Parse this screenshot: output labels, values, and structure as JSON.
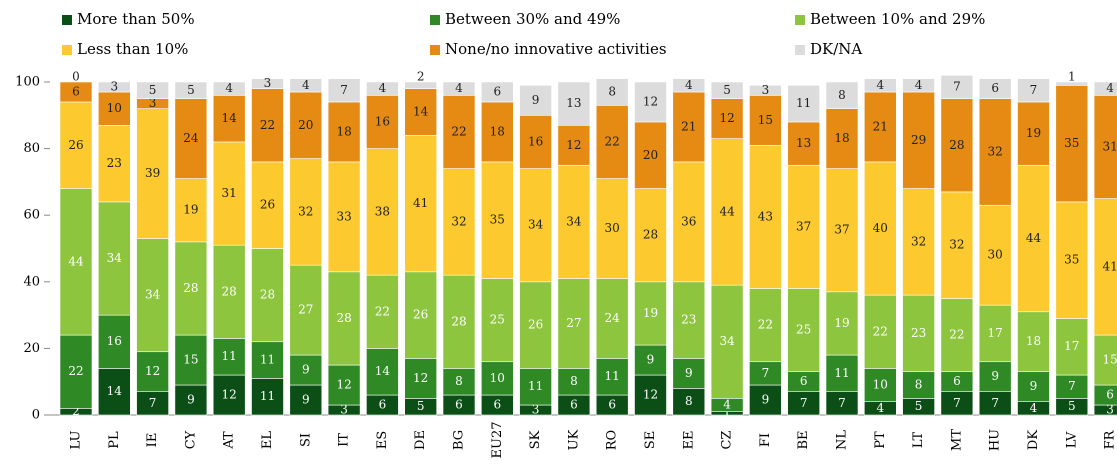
{
  "chart_data": {
    "type": "stacked_bar",
    "categories": [
      "LU",
      "PL",
      "IE",
      "CY",
      "AT",
      "EL",
      "SI",
      "IT",
      "ES",
      "DE",
      "BG",
      "EU27",
      "SK",
      "UK",
      "RO",
      "SE",
      "EE",
      "CZ",
      "FI",
      "BE",
      "NL",
      "PT",
      "LT",
      "MT",
      "HU",
      "DK",
      "LV",
      "FR"
    ],
    "series": [
      {
        "name": "More than 50%",
        "color": "#0b4f16",
        "values": [
          2,
          14,
          7,
          9,
          12,
          11,
          9,
          3,
          6,
          5,
          6,
          6,
          3,
          6,
          6,
          12,
          8,
          1,
          9,
          7,
          7,
          4,
          5,
          7,
          7,
          4,
          5,
          3
        ]
      },
      {
        "name": "Between 30% and 49%",
        "color": "#2f8a26",
        "values": [
          22,
          16,
          12,
          15,
          11,
          11,
          9,
          12,
          14,
          12,
          8,
          10,
          11,
          8,
          11,
          9,
          9,
          4,
          7,
          6,
          11,
          10,
          8,
          6,
          9,
          9,
          7,
          6
        ]
      },
      {
        "name": "Between 10% and 29%",
        "color": "#8dc53e",
        "values": [
          44,
          34,
          34,
          28,
          28,
          28,
          27,
          28,
          22,
          26,
          28,
          25,
          26,
          27,
          24,
          19,
          23,
          34,
          22,
          25,
          19,
          22,
          23,
          22,
          17,
          18,
          17,
          15
        ]
      },
      {
        "name": "Less than 10%",
        "color": "#fcc92e",
        "values": [
          26,
          23,
          39,
          19,
          31,
          26,
          32,
          33,
          38,
          41,
          32,
          35,
          34,
          34,
          30,
          28,
          36,
          44,
          43,
          37,
          37,
          40,
          32,
          32,
          30,
          44,
          35,
          41
        ]
      },
      {
        "name": "None/no innovative activities",
        "color": "#e58a12",
        "values": [
          6,
          10,
          3,
          24,
          14,
          22,
          20,
          18,
          16,
          14,
          22,
          18,
          16,
          12,
          22,
          20,
          21,
          12,
          15,
          13,
          18,
          21,
          29,
          28,
          32,
          19,
          35,
          31
        ]
      },
      {
        "name": "DK/NA",
        "color": "#dcdcdc",
        "values": [
          0,
          3,
          5,
          5,
          4,
          3,
          4,
          7,
          4,
          2,
          4,
          6,
          9,
          13,
          8,
          12,
          4,
          5,
          3,
          11,
          8,
          4,
          4,
          7,
          6,
          7,
          1,
          4
        ]
      }
    ],
    "ylim": [
      0,
      100
    ],
    "yticks": [
      0,
      20,
      40,
      60,
      80,
      100
    ]
  }
}
